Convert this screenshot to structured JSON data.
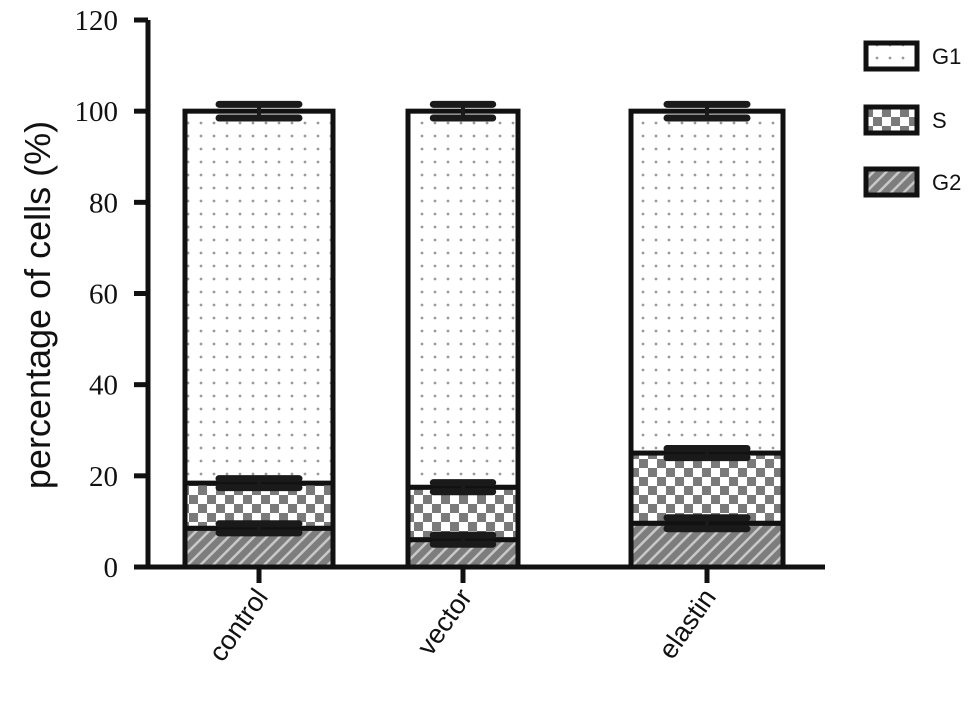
{
  "chart_data": {
    "type": "bar",
    "stacked": true,
    "title": "",
    "xlabel": "",
    "ylabel": "percentage of cells (%)",
    "ylim": [
      0,
      120
    ],
    "yticks": [
      0,
      20,
      40,
      60,
      80,
      100,
      120
    ],
    "grid": false,
    "legend_position": "right",
    "categories": [
      "control",
      "vector",
      "elastin"
    ],
    "series": [
      {
        "name": "G2",
        "pattern": "diagonal-hatch",
        "values": [
          8.5,
          6.0,
          9.6
        ],
        "error": [
          1.0,
          1.0,
          1.2
        ]
      },
      {
        "name": "S",
        "pattern": "checkerboard",
        "values": [
          9.9,
          11.5,
          15.4
        ],
        "error": [
          1.0,
          1.0,
          1.0
        ]
      },
      {
        "name": "G1",
        "pattern": "dots",
        "values": [
          81.6,
          82.5,
          75.0
        ],
        "error": [
          1.5,
          1.5,
          1.5
        ]
      }
    ],
    "legend": [
      "G1",
      "S",
      "G2"
    ]
  },
  "colors": {
    "axis": "#111111",
    "hatch_fill": "#8a8a8a",
    "checker_dark": "#7a7a7a",
    "dot": "#9a9a9a",
    "background": "#ffffff"
  }
}
